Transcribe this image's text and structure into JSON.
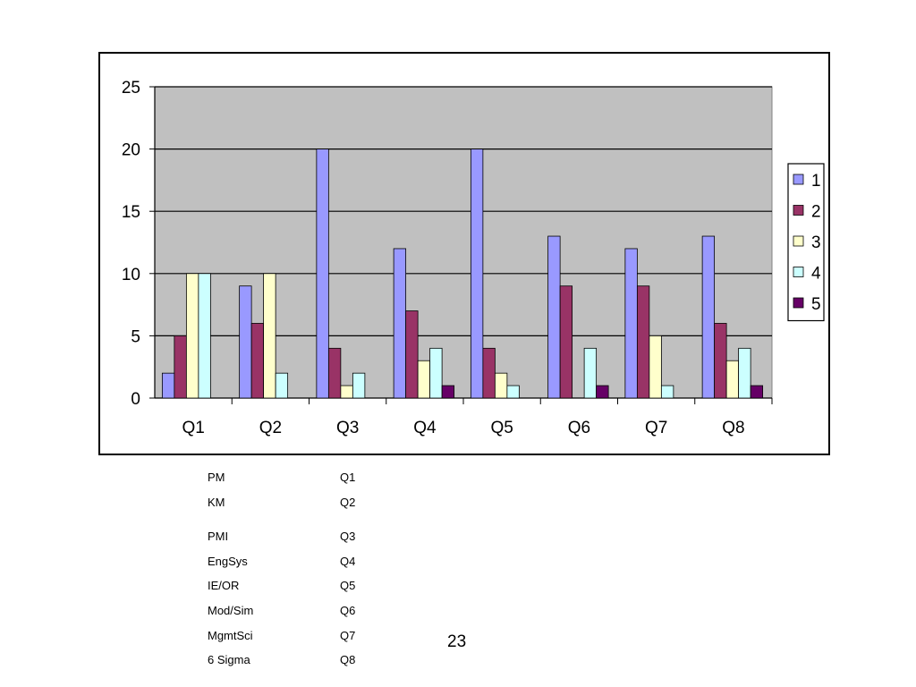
{
  "chart_data": {
    "type": "bar",
    "categories": [
      "Q1",
      "Q2",
      "Q3",
      "Q4",
      "Q5",
      "Q6",
      "Q7",
      "Q8"
    ],
    "series": [
      {
        "name": "1",
        "color": "#9999ff",
        "values": [
          2,
          9,
          20,
          12,
          20,
          13,
          12,
          13
        ]
      },
      {
        "name": "2",
        "color": "#993366",
        "values": [
          5,
          6,
          4,
          7,
          4,
          9,
          9,
          6
        ]
      },
      {
        "name": "3",
        "color": "#ffffcc",
        "values": [
          10,
          10,
          1,
          3,
          2,
          0,
          5,
          3
        ]
      },
      {
        "name": "4",
        "color": "#ccffff",
        "values": [
          10,
          2,
          2,
          4,
          1,
          4,
          1,
          4
        ]
      },
      {
        "name": "5",
        "color": "#660066",
        "values": [
          0,
          0,
          0,
          1,
          0,
          1,
          0,
          1
        ]
      }
    ],
    "ylim": [
      0,
      25
    ],
    "yticks": [
      0,
      5,
      10,
      15,
      20,
      25
    ],
    "grid": true,
    "plot_background": "#c0c0c0",
    "legend_position": "right"
  },
  "mapping": [
    {
      "label": "PM",
      "code": "Q1"
    },
    {
      "label": "KM",
      "code": "Q2"
    },
    {
      "label": "PMI",
      "code": "Q3"
    },
    {
      "label": "EngSys",
      "code": "Q4"
    },
    {
      "label": "IE/OR",
      "code": "Q5"
    },
    {
      "label": "Mod/Sim",
      "code": "Q6"
    },
    {
      "label": "MgmtSci",
      "code": "Q7"
    },
    {
      "label": "6 Sigma",
      "code": "Q8"
    }
  ],
  "page_number": "23"
}
